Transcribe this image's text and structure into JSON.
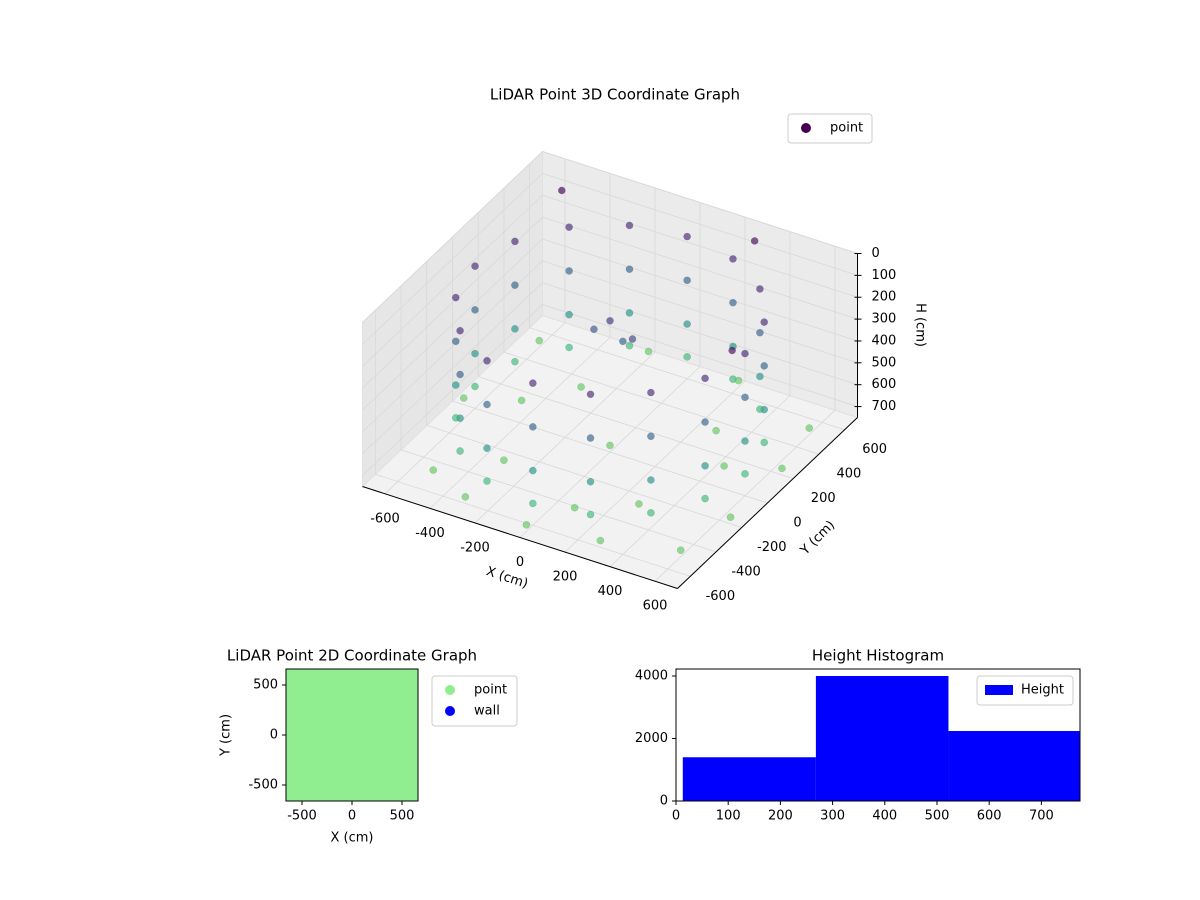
{
  "chart_data": [
    {
      "type": "scatter3d",
      "title": "LiDAR Point 3D Coordinate Graph",
      "xlabel": "X (cm)",
      "ylabel": "Y (cm)",
      "zlabel": "H (cm)",
      "xlim": [
        -700,
        700
      ],
      "ylim": [
        -700,
        700
      ],
      "zlim": [
        750,
        0
      ],
      "xticks": [
        -600,
        -400,
        -200,
        0,
        200,
        400,
        600
      ],
      "yticks": [
        -600,
        -400,
        -200,
        0,
        200,
        400,
        600
      ],
      "zticks": [
        0,
        100,
        200,
        300,
        400,
        500,
        600,
        700
      ],
      "cmap": "viridis",
      "grid": true,
      "legend": "upper right",
      "series": [
        {
          "name": "point",
          "color": "#440154",
          "x": [
            600,
            554,
            424,
            230,
            0,
            -230,
            -424,
            -554,
            -600,
            -554,
            -424,
            -230,
            0,
            230,
            424,
            554,
            600,
            554,
            424,
            230,
            0,
            -230,
            -424,
            -554,
            -600,
            -554,
            -424,
            -230,
            0,
            230,
            424,
            554,
            600,
            554,
            424,
            230,
            0,
            -230,
            -424,
            -554,
            -600,
            -554,
            -424,
            -230,
            0,
            230,
            424,
            554,
            600,
            554,
            424,
            230,
            0,
            -230,
            -424,
            -554,
            -600,
            -554,
            -424,
            -230,
            0,
            230,
            424,
            554,
            -500,
            -300,
            0,
            300,
            600,
            650,
            650,
            600,
            200,
            -200,
            -600,
            -650,
            -300,
            300,
            0,
            -300,
            300,
            100,
            -450,
            450,
            0,
            100,
            -100,
            0,
            -500,
            300,
            600
          ],
          "y": [
            0,
            230,
            424,
            554,
            600,
            554,
            424,
            230,
            0,
            -230,
            -424,
            -554,
            -600,
            -554,
            -424,
            -230,
            0,
            230,
            424,
            554,
            600,
            554,
            424,
            230,
            0,
            -230,
            -424,
            -554,
            -600,
            -554,
            -424,
            -230,
            0,
            230,
            424,
            554,
            600,
            554,
            424,
            230,
            0,
            -230,
            -424,
            -554,
            -600,
            -554,
            -424,
            -230,
            0,
            230,
            424,
            554,
            600,
            554,
            424,
            230,
            0,
            -230,
            -424,
            -554,
            -600,
            -554,
            -424,
            -230,
            -500,
            -600,
            -650,
            -600,
            -500,
            -200,
            200,
            500,
            650,
            650,
            500,
            0,
            -300,
            300,
            0,
            300,
            -300,
            -450,
            100,
            100,
            0,
            0,
            50,
            100,
            500,
            600,
            -100
          ],
          "z": [
            100,
            100,
            100,
            100,
            100,
            100,
            100,
            100,
            100,
            100,
            100,
            100,
            100,
            100,
            100,
            100,
            300,
            300,
            300,
            300,
            300,
            300,
            300,
            300,
            300,
            300,
            300,
            300,
            300,
            300,
            300,
            300,
            500,
            500,
            500,
            500,
            500,
            500,
            500,
            500,
            500,
            500,
            500,
            500,
            500,
            500,
            500,
            500,
            650,
            650,
            650,
            650,
            650,
            650,
            650,
            650,
            650,
            650,
            650,
            650,
            650,
            650,
            650,
            650,
            720,
            720,
            720,
            720,
            720,
            720,
            720,
            720,
            720,
            720,
            720,
            720,
            720,
            720,
            720,
            720,
            720,
            720,
            720,
            720,
            150,
            200,
            250,
            300,
            0,
            20,
            30
          ]
        }
      ]
    },
    {
      "type": "scatter",
      "title": "LiDAR Point 2D Coordinate Graph",
      "xlabel": "X (cm)",
      "ylabel": "Y (cm)",
      "xlim": [
        -660,
        660
      ],
      "ylim": [
        -660,
        660
      ],
      "xticks": [
        -500,
        0,
        500
      ],
      "yticks": [
        -500,
        0,
        500
      ],
      "legend": "outside right",
      "series": [
        {
          "name": "point",
          "color": "#90ee90",
          "x": [
            -600,
            -400,
            -200,
            0,
            200,
            400,
            600,
            -600,
            -400,
            -200,
            0,
            200,
            400,
            600,
            -600,
            -400,
            -200,
            0,
            200,
            400,
            600,
            -600,
            -400,
            -200,
            0,
            200,
            400,
            600,
            -600,
            -400,
            -200,
            0,
            200,
            400,
            600,
            -600,
            -400,
            -200,
            0,
            200,
            400,
            600,
            -600,
            -400,
            -200,
            0,
            200,
            400,
            600
          ],
          "y": [
            -600,
            -600,
            -600,
            -600,
            -600,
            -600,
            -600,
            -400,
            -400,
            -400,
            -400,
            -400,
            -400,
            -400,
            -200,
            -200,
            -200,
            -200,
            -200,
            -200,
            -200,
            0,
            0,
            0,
            0,
            0,
            0,
            0,
            200,
            200,
            200,
            200,
            200,
            200,
            200,
            400,
            400,
            400,
            400,
            400,
            400,
            400,
            600,
            600,
            600,
            600,
            600,
            600,
            600
          ]
        },
        {
          "name": "wall",
          "color": "#0000ff",
          "x": [],
          "y": []
        }
      ]
    },
    {
      "type": "histogram",
      "title": "Height Histogram",
      "bins": [
        13,
        268,
        522,
        774
      ],
      "xlim": [
        0,
        774
      ],
      "ylim": [
        0,
        4224
      ],
      "xticks": [
        0,
        100,
        200,
        300,
        400,
        500,
        600,
        700
      ],
      "yticks": [
        0,
        2000,
        4000
      ],
      "legend": "upper right",
      "series": [
        {
          "name": "Height",
          "color": "#0000ff",
          "values": [
            1400,
            4000,
            2240
          ]
        }
      ]
    }
  ]
}
